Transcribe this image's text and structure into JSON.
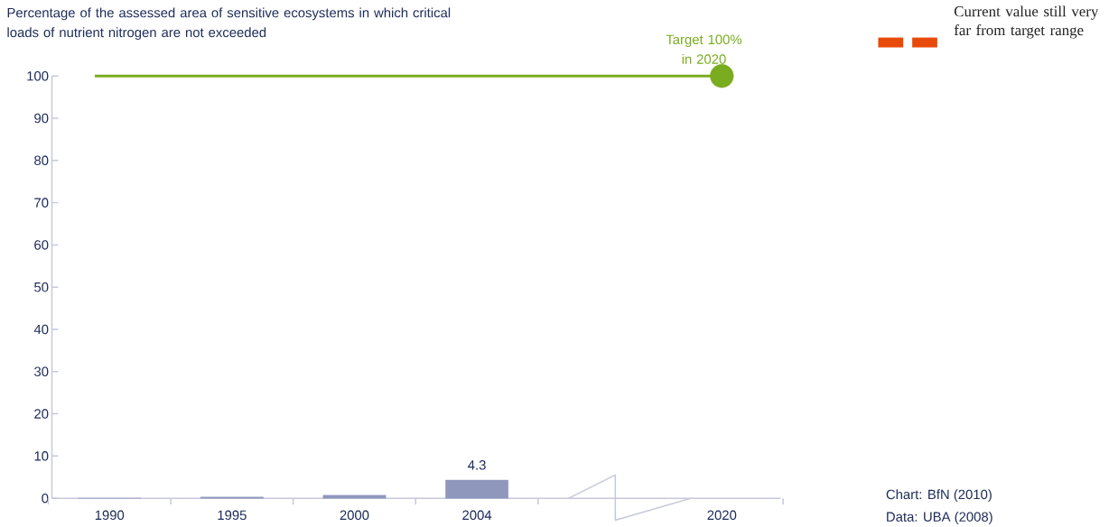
{
  "chart_data": {
    "type": "bar",
    "title": "Percentage of the assessed area of sensitive ecosystems in which critical loads of nutrient nitrogen are not exceeded",
    "categories": [
      "1990",
      "1995",
      "2000",
      "2004",
      null,
      "2020"
    ],
    "series": [
      {
        "color": "#8f97bd",
        "values": [
          0,
          0.3,
          0.7,
          4.3,
          null,
          null
        ],
        "value_labels": [
          null,
          null,
          null,
          "4.3",
          null,
          null
        ]
      },
      {
        "type": "scatter",
        "color": "#7aac1f",
        "values": [
          null,
          null,
          null,
          null,
          null,
          100
        ]
      }
    ],
    "ref_lines": [
      {
        "axis": "y",
        "value": 100,
        "label": "Target 100% in 2020",
        "color": "#7aac1f",
        "line_style": "solid"
      }
    ],
    "ylim": [
      0,
      100
    ],
    "yticks": [
      0,
      10,
      20,
      30,
      40,
      50,
      60,
      70,
      80,
      90,
      100
    ],
    "grid": false,
    "annotations": [
      "Current value still very far from target range",
      "Chart: BfN (2010)",
      "Data: UBA (2008)"
    ]
  }
}
